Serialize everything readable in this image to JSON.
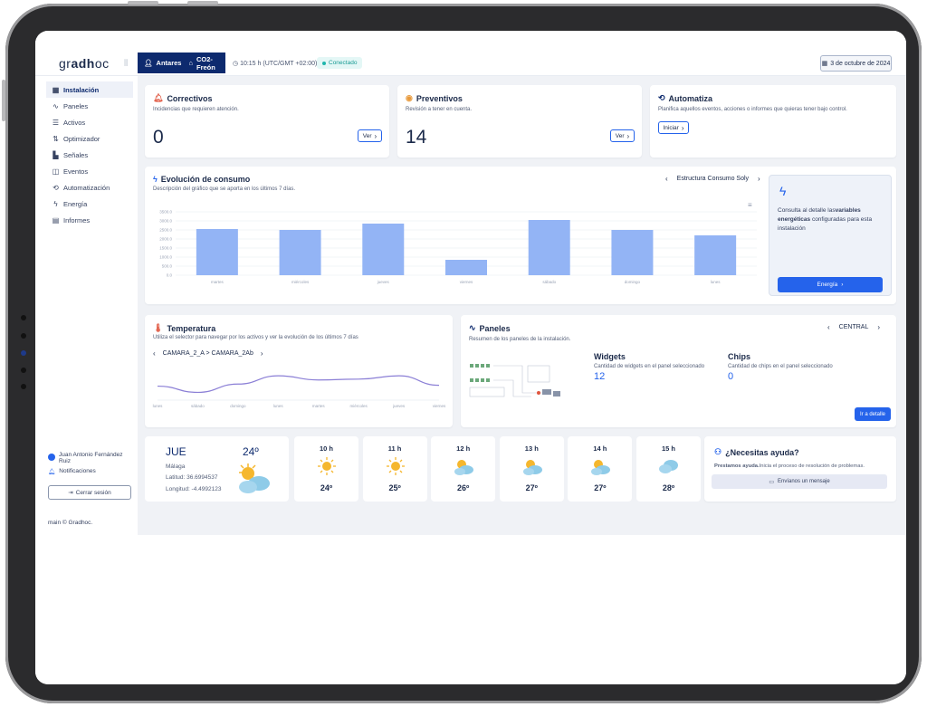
{
  "header": {
    "logo_pre": "gr",
    "logo_mid": "adh",
    "logo_post": "oc",
    "site": "Antares",
    "site_sub": "CO2-Freón",
    "time": "10:15 h (UTC/GMT +02:00)",
    "status": "Conectado",
    "date": "3 de octubre de 2024"
  },
  "sidebar": {
    "items": [
      {
        "label": "Instalación",
        "icon": "grid-icon"
      },
      {
        "label": "Paneles",
        "icon": "pulse-icon"
      },
      {
        "label": "Activos",
        "icon": "list-icon"
      },
      {
        "label": "Optimizador",
        "icon": "sort-icon"
      },
      {
        "label": "Señales",
        "icon": "signal-icon"
      },
      {
        "label": "Eventos",
        "icon": "events-icon"
      },
      {
        "label": "Automatización",
        "icon": "automation-icon"
      },
      {
        "label": "Energía",
        "icon": "bolt-icon"
      },
      {
        "label": "Informes",
        "icon": "document-icon"
      }
    ],
    "user_name": "Juan Antonio Fernández Ruiz",
    "notifications": "Notificaciones",
    "logout": "Cerrar sesión",
    "footer": "main © Gradhoc."
  },
  "correctivos": {
    "title": "Correctivos",
    "subtitle": "Incidencias que requieren atención.",
    "count": "0",
    "button": "Ver"
  },
  "preventivos": {
    "title": "Preventivos",
    "subtitle": "Revisión a tener en cuenta.",
    "count": "14",
    "button": "Ver"
  },
  "automatiza": {
    "title": "Automatiza",
    "subtitle": "Planifica aquellos eventos, acciones o informes que quieras tener bajo control.",
    "button": "Iniciar"
  },
  "consumo": {
    "title": "Evolución de consumo",
    "subtitle": "Descripción del gráfico que se aporta en los últimos 7 días.",
    "selector": "Estructura Consumo Soly"
  },
  "energia_card": {
    "text_pre": "Consulta al detalle las",
    "text_bold": "variables energéticas",
    "text_post": " configuradas para esta instalación",
    "button": "Energía"
  },
  "temperatura": {
    "title": "Temperatura",
    "subtitle": "Utiliza el selector para navegar por los activos y ver la evolución de los últimos 7 días",
    "selector": "CAMARA_2_A > CAMARA_2Ab"
  },
  "paneles": {
    "title": "Paneles",
    "subtitle": "Resumen de los paneles de la instalación.",
    "selector": "CENTRAL",
    "widgets_title": "Widgets",
    "widgets_sub": "Cantidad de widgets en el panel seleccionado",
    "widgets_count": "12",
    "chips_title": "Chips",
    "chips_sub": "Cantidad de chips en el panel seleccionado",
    "chips_count": "0",
    "button": "Ir a detalle"
  },
  "weather": {
    "day": "JUE",
    "temp": "24º",
    "city": "Málaga",
    "lat": "Latitud: 36.6994537",
    "lon": "Longitud: -4.4992123",
    "hours": [
      {
        "h": "10 h",
        "t": "24º",
        "icon": "sun-icon"
      },
      {
        "h": "11 h",
        "t": "25º",
        "icon": "sun-icon"
      },
      {
        "h": "12 h",
        "t": "26º",
        "icon": "sun-cloud-icon"
      },
      {
        "h": "13 h",
        "t": "27º",
        "icon": "sun-cloud-icon"
      },
      {
        "h": "14 h",
        "t": "27º",
        "icon": "sun-cloud-icon"
      },
      {
        "h": "15 h",
        "t": "28º",
        "icon": "cloud-icon"
      }
    ]
  },
  "help": {
    "title": "¿Necesitas ayuda?",
    "text_bold": "Prestamos ayuda.",
    "text": "Inicia el proceso de resolución de problemas.",
    "button": "Envíanos un mensaje"
  },
  "chart_data": [
    {
      "type": "bar",
      "title": "Evolución de consumo",
      "categories": [
        "martes",
        "miércoles",
        "jueves",
        "viernes",
        "sábado",
        "domingo",
        "lunes"
      ],
      "values": [
        2550,
        2500,
        2850,
        850,
        3050,
        2500,
        2200
      ],
      "yticks": [
        "3500.0",
        "3000.0",
        "2500.0",
        "2000.0",
        "1500.0",
        "1000.0",
        "500.0",
        "0.0"
      ],
      "ylim": [
        0,
        3500
      ],
      "color": "#93b4f5"
    },
    {
      "type": "line",
      "title": "Temperatura",
      "categories": [
        "lunes",
        "sábado",
        "domingo",
        "lunes",
        "martes",
        "miércoles",
        "jueves",
        "viernes"
      ],
      "values": [
        -1.5,
        -3.0,
        -1.0,
        1.0,
        0.0,
        0.2,
        1.0,
        -1.3
      ],
      "ylim": [
        -4,
        3
      ],
      "color": "#8b7fd6"
    }
  ]
}
